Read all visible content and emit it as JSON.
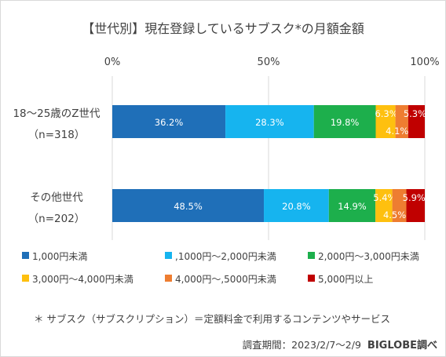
{
  "chart_data": {
    "type": "bar",
    "orientation": "horizontal",
    "stacked": true,
    "title": "【世代別】現在登録しているサブスク*の月額金額",
    "xlabel": "",
    "ylabel": "",
    "xlim": [
      0,
      100
    ],
    "x_tick_labels": [
      "0%",
      "50%",
      "100%"
    ],
    "grid": true,
    "legend_position": "bottom",
    "categories": [
      {
        "line1": "18～25歳のZ世代",
        "line2": "（n=318）"
      },
      {
        "line1": "その他世代",
        "line2": "（n=202）"
      }
    ],
    "series": [
      {
        "name": "1,000円未満",
        "color": "#1f6fb8",
        "values": [
          36.2,
          48.5
        ],
        "labels": [
          "36.2%",
          "48.5%"
        ]
      },
      {
        "name": ",1000円～2,000円未満",
        "color": "#16b4ef",
        "values": [
          28.3,
          20.8
        ],
        "labels": [
          "28.3%",
          "20.8%"
        ]
      },
      {
        "name": "2,000円～3,000円未満",
        "color": "#1daf4c",
        "values": [
          19.8,
          14.9
        ],
        "labels": [
          "19.8%",
          "14.9%"
        ]
      },
      {
        "name": "3,000円～4,000円未満",
        "color": "#fec00f",
        "values": [
          6.3,
          5.4
        ],
        "labels": [
          "6.3%",
          "5.4%"
        ]
      },
      {
        "name": "4,000円～,5000円未満",
        "color": "#ee7d31",
        "values": [
          4.1,
          4.5
        ],
        "labels": [
          "4.1%",
          "4.5%"
        ]
      },
      {
        "name": "5,000円以上",
        "color": "#c00000",
        "values": [
          5.3,
          5.9
        ],
        "labels": [
          "5.3%",
          "5.9%"
        ]
      }
    ]
  },
  "footnote": "＊ サブスク（サブスクリプション）＝定額料金で利用するコンテンツやサービス",
  "source": {
    "period": "調査期間：2023/2/7～2/9",
    "brand": "BIGLOBE調べ"
  }
}
